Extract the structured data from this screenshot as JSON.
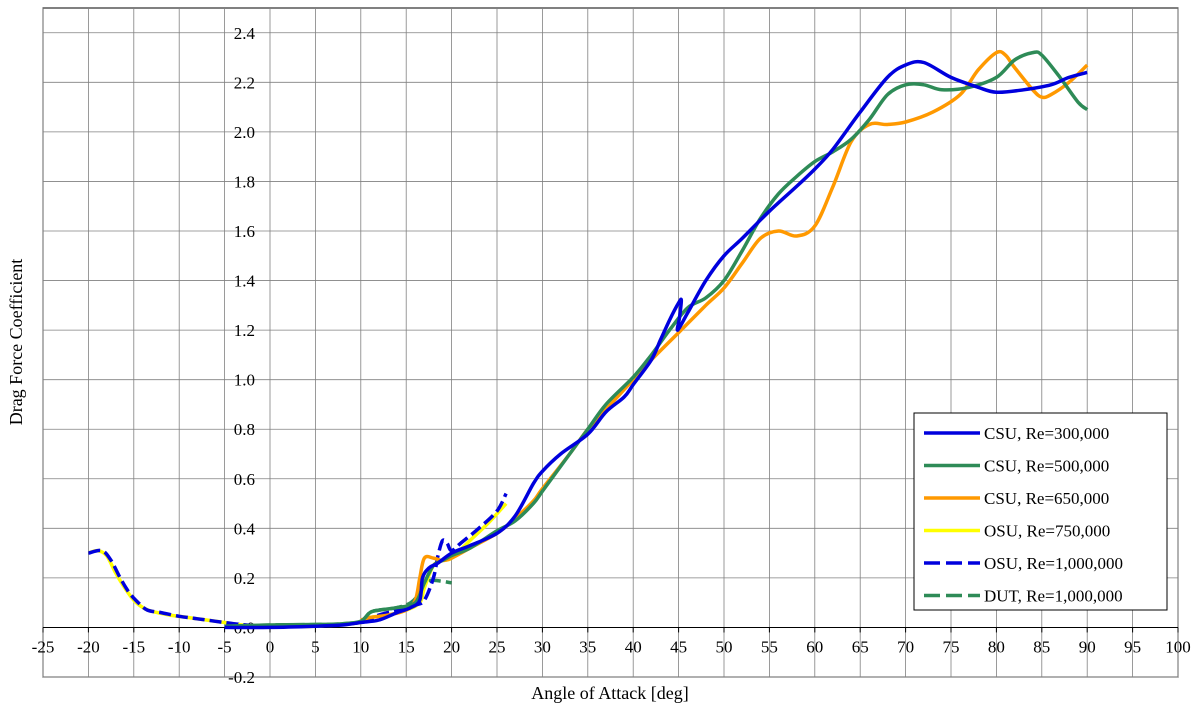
{
  "chart_data": {
    "type": "line",
    "title": "",
    "xlabel": "Angle of Attack [deg]",
    "ylabel": "Drag Force Coefficient",
    "xlim": [
      -25,
      100
    ],
    "ylim": [
      -0.2,
      2.5
    ],
    "x_ticks": [
      -25,
      -20,
      -15,
      -10,
      -5,
      0,
      5,
      10,
      15,
      20,
      25,
      30,
      35,
      40,
      45,
      50,
      55,
      60,
      65,
      70,
      75,
      80,
      85,
      90,
      95,
      100
    ],
    "x_tick_labels": [
      "-25",
      "-20",
      "-15",
      "-10",
      "-5",
      "0",
      "5",
      "10",
      "15",
      "20",
      "25",
      "30",
      "35",
      "40",
      "45",
      "50",
      "55",
      "60",
      "65",
      "70",
      "75",
      "80",
      "85",
      "90",
      "95",
      "100"
    ],
    "y_ticks": [
      -0.2,
      0.0,
      0.2,
      0.4,
      0.6,
      0.8,
      1.0,
      1.2,
      1.4,
      1.6,
      1.8,
      2.0,
      2.2,
      2.4
    ],
    "y_tick_labels": [
      "-0.2",
      "0.0",
      "0.2",
      "0.4",
      "0.6",
      "0.8",
      "1.0",
      "1.2",
      "1.4",
      "1.6",
      "1.8",
      "2.0",
      "2.2",
      "2.4"
    ],
    "grid": true,
    "legend_position": "bottom-right",
    "series": [
      {
        "name": "CSU, Re=300,000",
        "color": "#0000dd",
        "dash": "solid",
        "points": [
          [
            -5,
            0.0
          ],
          [
            0,
            0.0
          ],
          [
            5,
            0.005
          ],
          [
            8,
            0.01
          ],
          [
            10,
            0.02
          ],
          [
            12,
            0.03
          ],
          [
            14,
            0.06
          ],
          [
            15.5,
            0.08
          ],
          [
            16.5,
            0.11
          ],
          [
            16.8,
            0.2
          ],
          [
            17.5,
            0.24
          ],
          [
            18.5,
            0.26
          ],
          [
            20,
            0.3
          ],
          [
            22,
            0.33
          ],
          [
            25,
            0.38
          ],
          [
            27,
            0.45
          ],
          [
            29,
            0.58
          ],
          [
            30,
            0.63
          ],
          [
            32,
            0.7
          ],
          [
            35,
            0.78
          ],
          [
            37,
            0.87
          ],
          [
            39,
            0.93
          ],
          [
            40,
            0.98
          ],
          [
            42,
            1.08
          ],
          [
            43,
            1.16
          ],
          [
            44,
            1.24
          ],
          [
            45,
            1.31
          ],
          [
            45.3,
            1.32
          ],
          [
            45.1,
            1.25
          ],
          [
            44.9,
            1.2
          ],
          [
            46,
            1.27
          ],
          [
            48,
            1.4
          ],
          [
            50,
            1.5
          ],
          [
            52,
            1.57
          ],
          [
            55,
            1.68
          ],
          [
            58,
            1.78
          ],
          [
            60,
            1.85
          ],
          [
            62,
            1.93
          ],
          [
            65,
            2.08
          ],
          [
            68,
            2.22
          ],
          [
            70,
            2.27
          ],
          [
            72,
            2.28
          ],
          [
            75,
            2.22
          ],
          [
            78,
            2.18
          ],
          [
            80,
            2.16
          ],
          [
            83,
            2.17
          ],
          [
            86,
            2.19
          ],
          [
            88,
            2.22
          ],
          [
            90,
            2.24
          ]
        ]
      },
      {
        "name": "CSU, Re=500,000",
        "color": "#2e8b57",
        "dash": "solid",
        "points": [
          [
            -5,
            0.005
          ],
          [
            0,
            0.01
          ],
          [
            5,
            0.012
          ],
          [
            8,
            0.015
          ],
          [
            10,
            0.025
          ],
          [
            11,
            0.06
          ],
          [
            12,
            0.07
          ],
          [
            14,
            0.08
          ],
          [
            16,
            0.1
          ],
          [
            17,
            0.18
          ],
          [
            18,
            0.25
          ],
          [
            19,
            0.27
          ],
          [
            20,
            0.29
          ],
          [
            22,
            0.32
          ],
          [
            25,
            0.39
          ],
          [
            27,
            0.43
          ],
          [
            29,
            0.5
          ],
          [
            30,
            0.55
          ],
          [
            32,
            0.65
          ],
          [
            35,
            0.8
          ],
          [
            37,
            0.9
          ],
          [
            40,
            1.01
          ],
          [
            42,
            1.1
          ],
          [
            44,
            1.2
          ],
          [
            46,
            1.29
          ],
          [
            48,
            1.33
          ],
          [
            50,
            1.4
          ],
          [
            52,
            1.52
          ],
          [
            54,
            1.65
          ],
          [
            56,
            1.75
          ],
          [
            58,
            1.82
          ],
          [
            60,
            1.88
          ],
          [
            62,
            1.92
          ],
          [
            64,
            1.97
          ],
          [
            66,
            2.05
          ],
          [
            68,
            2.15
          ],
          [
            70,
            2.19
          ],
          [
            72,
            2.19
          ],
          [
            74,
            2.17
          ],
          [
            77,
            2.18
          ],
          [
            80,
            2.22
          ],
          [
            82,
            2.29
          ],
          [
            84,
            2.32
          ],
          [
            85,
            2.31
          ],
          [
            87,
            2.22
          ],
          [
            89,
            2.12
          ],
          [
            90,
            2.09
          ]
        ]
      },
      {
        "name": "CSU, Re=650,000",
        "color": "#ff9900",
        "dash": "solid",
        "points": [
          [
            10,
            0.03
          ],
          [
            11,
            0.04
          ],
          [
            13,
            0.05
          ],
          [
            15,
            0.07
          ],
          [
            16,
            0.11
          ],
          [
            16.5,
            0.2
          ],
          [
            17,
            0.28
          ],
          [
            18,
            0.28
          ],
          [
            19,
            0.27
          ],
          [
            20,
            0.28
          ],
          [
            22,
            0.32
          ],
          [
            25,
            0.38
          ],
          [
            27,
            0.44
          ],
          [
            29,
            0.51
          ],
          [
            30,
            0.56
          ],
          [
            33,
            0.7
          ],
          [
            35,
            0.8
          ],
          [
            37,
            0.88
          ],
          [
            40,
            1.0
          ],
          [
            42,
            1.08
          ],
          [
            45,
            1.19
          ],
          [
            48,
            1.3
          ],
          [
            50,
            1.37
          ],
          [
            52,
            1.47
          ],
          [
            54,
            1.57
          ],
          [
            56,
            1.6
          ],
          [
            58,
            1.58
          ],
          [
            60,
            1.62
          ],
          [
            62,
            1.78
          ],
          [
            64,
            1.96
          ],
          [
            66,
            2.03
          ],
          [
            68,
            2.03
          ],
          [
            70,
            2.04
          ],
          [
            73,
            2.08
          ],
          [
            76,
            2.15
          ],
          [
            78,
            2.25
          ],
          [
            80,
            2.32
          ],
          [
            81,
            2.31
          ],
          [
            82,
            2.26
          ],
          [
            84,
            2.17
          ],
          [
            85,
            2.14
          ],
          [
            86,
            2.15
          ],
          [
            88,
            2.2
          ],
          [
            90,
            2.27
          ]
        ]
      },
      {
        "name": "OSU, Re=750,000",
        "color": "#ffff00",
        "dash": "solid",
        "points": [
          [
            -20,
            0.3
          ],
          [
            -19,
            0.31
          ],
          [
            -18,
            0.29
          ],
          [
            -17,
            0.22
          ],
          [
            -16,
            0.16
          ],
          [
            -15,
            0.11
          ],
          [
            -14,
            0.08
          ],
          [
            -13,
            0.065
          ],
          [
            -11,
            0.05
          ],
          [
            -9,
            0.04
          ],
          [
            -7,
            0.03
          ],
          [
            -5,
            0.02
          ],
          [
            -3,
            0.01
          ],
          [
            0,
            0.005
          ],
          [
            5,
            0.005
          ],
          [
            10,
            0.02
          ],
          [
            11,
            0.04
          ],
          [
            13,
            0.05
          ],
          [
            15,
            0.07
          ],
          [
            16.5,
            0.1
          ],
          [
            17,
            0.16
          ],
          [
            18,
            0.25
          ],
          [
            19,
            0.27
          ],
          [
            20,
            0.28
          ],
          [
            22,
            0.35
          ],
          [
            24,
            0.42
          ],
          [
            26,
            0.5
          ]
        ]
      },
      {
        "name": "OSU, Re=1,000,000",
        "color": "#0000dd",
        "dash": "dashed",
        "points": [
          [
            -20,
            0.3
          ],
          [
            -18.5,
            0.31
          ],
          [
            -17.5,
            0.27
          ],
          [
            -16.5,
            0.2
          ],
          [
            -15.5,
            0.14
          ],
          [
            -14.5,
            0.1
          ],
          [
            -13.5,
            0.07
          ],
          [
            -12,
            0.06
          ],
          [
            -10,
            0.045
          ],
          [
            -8,
            0.035
          ],
          [
            -6,
            0.025
          ],
          [
            -4,
            0.015
          ],
          [
            -2,
            0.008
          ],
          [
            0,
            0.005
          ],
          [
            5,
            0.008
          ],
          [
            10,
            0.02
          ],
          [
            12,
            0.05
          ],
          [
            14,
            0.07
          ],
          [
            16,
            0.09
          ],
          [
            17,
            0.11
          ],
          [
            18,
            0.2
          ],
          [
            18.5,
            0.29
          ],
          [
            19,
            0.35
          ],
          [
            19.5,
            0.34
          ],
          [
            20,
            0.31
          ],
          [
            21,
            0.34
          ],
          [
            23,
            0.4
          ],
          [
            25,
            0.47
          ],
          [
            26,
            0.54
          ]
        ]
      },
      {
        "name": "DUT, Re=1,000,000",
        "color": "#2e8b57",
        "dash": "dashed",
        "points": [
          [
            -5,
            0.005
          ],
          [
            0,
            0.01
          ],
          [
            5,
            0.012
          ],
          [
            8,
            0.015
          ],
          [
            10,
            0.025
          ],
          [
            11,
            0.06
          ],
          [
            12,
            0.07
          ],
          [
            14,
            0.08
          ],
          [
            15.5,
            0.1
          ],
          [
            16.5,
            0.14
          ],
          [
            17,
            0.18
          ],
          [
            18,
            0.19
          ],
          [
            20,
            0.18
          ]
        ]
      }
    ]
  }
}
